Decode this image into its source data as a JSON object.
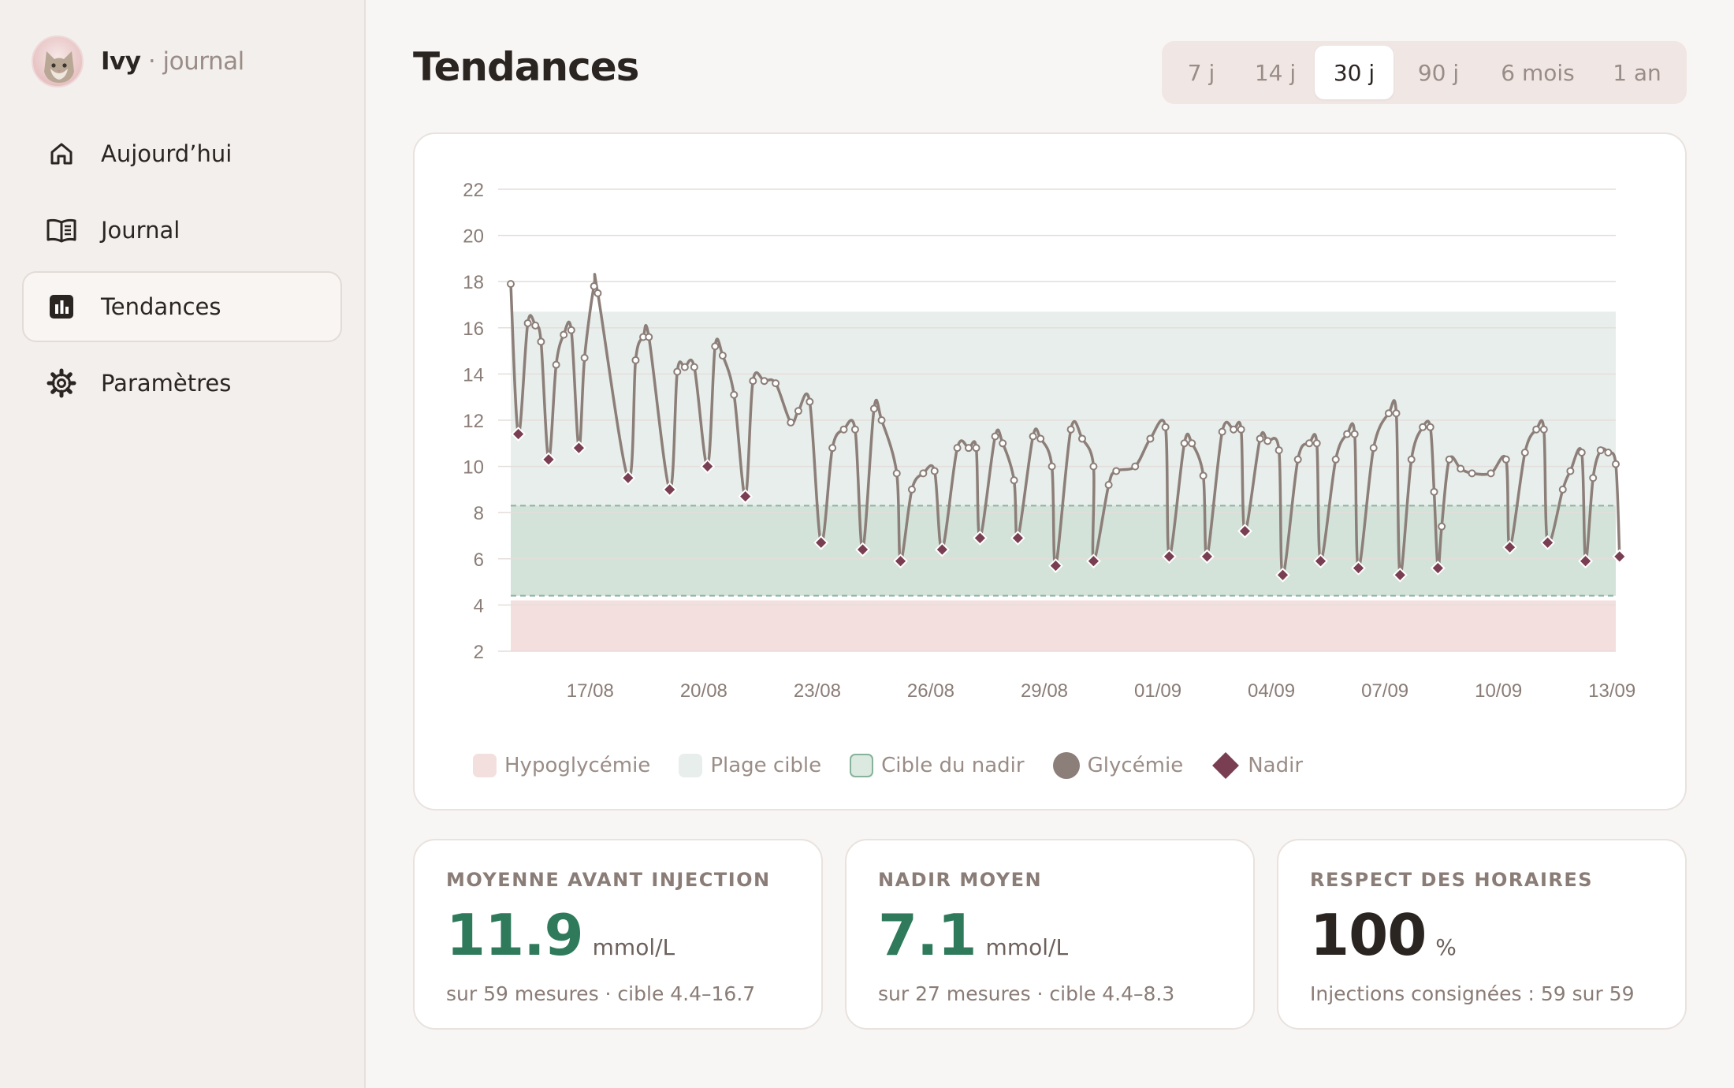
{
  "app": {
    "name": "Ivy",
    "separator": "·",
    "subtitle": "journal"
  },
  "nav": [
    {
      "label": "Aujourd’hui",
      "icon": "home-icon",
      "active": false
    },
    {
      "label": "Journal",
      "icon": "book-icon",
      "active": false
    },
    {
      "label": "Tendances",
      "icon": "bar-chart-icon",
      "active": true
    },
    {
      "label": "Paramètres",
      "icon": "gear-icon",
      "active": false
    }
  ],
  "page": {
    "title": "Tendances"
  },
  "range": {
    "options": [
      "7 j",
      "14 j",
      "30 j",
      "90 j",
      "6 mois",
      "1 an"
    ],
    "selected": "30 j"
  },
  "colors": {
    "accent_green": "#2e7a5b",
    "line": "#8c7e78",
    "nadir": "#7a3e52",
    "hypo_band": "#f4dfdf",
    "target_band": "#e8eeeb",
    "nadir_band": "#cfe0d6"
  },
  "chart_data": {
    "type": "line",
    "title": "",
    "xlabel": "",
    "ylabel": "",
    "ylim": [
      2,
      22
    ],
    "yticks": [
      2,
      4,
      6,
      8,
      10,
      12,
      14,
      16,
      18,
      20,
      22
    ],
    "xtick_labels": [
      "17/08",
      "20/08",
      "23/08",
      "26/08",
      "29/08",
      "01/09",
      "04/09",
      "07/09",
      "10/09",
      "13/09"
    ],
    "x_domain_days": [
      0,
      29.2
    ],
    "xtick_days": [
      2.1,
      5.1,
      8.1,
      11.1,
      14.1,
      17.1,
      20.1,
      23.1,
      26.1,
      29.1
    ],
    "bands": [
      {
        "name": "Hypoglycémie",
        "from": 2,
        "to": 4.2
      },
      {
        "name": "Plage cible",
        "from": 4.4,
        "to": 16.7
      },
      {
        "name": "Cible du nadir",
        "from": 4.4,
        "to": 8.3
      }
    ],
    "grid": true,
    "legend": [
      "Hypoglycémie",
      "Plage cible",
      "Cible du nadir",
      "Glycémie",
      "Nadir"
    ],
    "legend_position": "bottom-left",
    "series": [
      {
        "name": "Glycémie",
        "points": [
          [
            0,
            17.9
          ],
          [
            0.2,
            11.4
          ],
          [
            0.45,
            16.2
          ],
          [
            0.65,
            16.1
          ],
          [
            0.8,
            15.4
          ],
          [
            1.0,
            10.3
          ],
          [
            1.2,
            14.4
          ],
          [
            1.4,
            15.7
          ],
          [
            1.6,
            15.9
          ],
          [
            1.8,
            10.8
          ],
          [
            1.95,
            14.7
          ],
          [
            2.2,
            17.8
          ],
          [
            2.3,
            17.5
          ],
          [
            3.1,
            9.5
          ],
          [
            3.3,
            14.6
          ],
          [
            3.5,
            15.6
          ],
          [
            3.65,
            15.6
          ],
          [
            4.2,
            9.0
          ],
          [
            4.4,
            14.1
          ],
          [
            4.6,
            14.3
          ],
          [
            4.85,
            14.3
          ],
          [
            5.2,
            10.0
          ],
          [
            5.4,
            15.2
          ],
          [
            5.6,
            14.8
          ],
          [
            5.9,
            13.1
          ],
          [
            6.2,
            8.7
          ],
          [
            6.4,
            13.7
          ],
          [
            6.7,
            13.7
          ],
          [
            7.0,
            13.6
          ],
          [
            7.4,
            11.9
          ],
          [
            7.6,
            12.4
          ],
          [
            7.9,
            12.8
          ],
          [
            8.2,
            6.7
          ],
          [
            8.5,
            10.8
          ],
          [
            8.8,
            11.6
          ],
          [
            9.1,
            11.6
          ],
          [
            9.3,
            6.4
          ],
          [
            9.6,
            12.5
          ],
          [
            9.8,
            12.0
          ],
          [
            10.2,
            9.7
          ],
          [
            10.3,
            5.9
          ],
          [
            10.6,
            9.0
          ],
          [
            10.9,
            9.7
          ],
          [
            11.2,
            9.8
          ],
          [
            11.4,
            6.4
          ],
          [
            11.8,
            10.8
          ],
          [
            12.1,
            10.8
          ],
          [
            12.3,
            10.8
          ],
          [
            12.4,
            6.9
          ],
          [
            12.8,
            11.3
          ],
          [
            13.0,
            11.0
          ],
          [
            13.3,
            9.4
          ],
          [
            13.4,
            6.9
          ],
          [
            13.8,
            11.3
          ],
          [
            14.0,
            11.2
          ],
          [
            14.3,
            10.0
          ],
          [
            14.4,
            5.7
          ],
          [
            14.8,
            11.6
          ],
          [
            15.1,
            11.2
          ],
          [
            15.4,
            10.0
          ],
          [
            15.4,
            5.9
          ],
          [
            15.8,
            9.2
          ],
          [
            16.0,
            9.8
          ],
          [
            16.5,
            10.0
          ],
          [
            16.9,
            11.2
          ],
          [
            17.3,
            11.7
          ],
          [
            17.4,
            6.1
          ],
          [
            17.8,
            11.0
          ],
          [
            18.0,
            11.0
          ],
          [
            18.3,
            9.6
          ],
          [
            18.4,
            6.1
          ],
          [
            18.8,
            11.5
          ],
          [
            19.1,
            11.6
          ],
          [
            19.3,
            11.6
          ],
          [
            19.4,
            7.2
          ],
          [
            19.8,
            11.2
          ],
          [
            20.0,
            11.1
          ],
          [
            20.3,
            10.7
          ],
          [
            20.4,
            5.3
          ],
          [
            20.8,
            10.3
          ],
          [
            21.1,
            11.0
          ],
          [
            21.3,
            11.0
          ],
          [
            21.4,
            5.9
          ],
          [
            21.8,
            10.3
          ],
          [
            22.1,
            11.4
          ],
          [
            22.3,
            11.4
          ],
          [
            22.4,
            5.6
          ],
          [
            22.8,
            10.8
          ],
          [
            23.2,
            12.3
          ],
          [
            23.4,
            12.3
          ],
          [
            23.5,
            5.3
          ],
          [
            23.8,
            10.3
          ],
          [
            24.1,
            11.7
          ],
          [
            24.3,
            11.7
          ],
          [
            24.4,
            8.9
          ],
          [
            24.5,
            5.6
          ],
          [
            24.6,
            7.4
          ],
          [
            24.8,
            10.3
          ],
          [
            25.1,
            9.9
          ],
          [
            25.4,
            9.7
          ],
          [
            25.9,
            9.7
          ],
          [
            26.3,
            10.3
          ],
          [
            26.4,
            6.5
          ],
          [
            26.8,
            10.6
          ],
          [
            27.1,
            11.6
          ],
          [
            27.3,
            11.6
          ],
          [
            27.4,
            6.7
          ],
          [
            27.8,
            9.0
          ],
          [
            28.0,
            9.8
          ],
          [
            28.3,
            10.6
          ],
          [
            28.4,
            5.9
          ],
          [
            28.6,
            9.5
          ],
          [
            28.8,
            10.7
          ],
          [
            29.0,
            10.6
          ],
          [
            29.2,
            10.1
          ],
          [
            29.3,
            6.1
          ]
        ]
      },
      {
        "name": "Nadir",
        "points": [
          [
            0.2,
            11.4
          ],
          [
            1.0,
            10.3
          ],
          [
            1.8,
            10.8
          ],
          [
            3.1,
            9.5
          ],
          [
            4.2,
            9.0
          ],
          [
            5.2,
            10.0
          ],
          [
            6.2,
            8.7
          ],
          [
            8.2,
            6.7
          ],
          [
            9.3,
            6.4
          ],
          [
            10.3,
            5.9
          ],
          [
            11.4,
            6.4
          ],
          [
            12.4,
            6.9
          ],
          [
            13.4,
            6.9
          ],
          [
            14.4,
            5.7
          ],
          [
            15.4,
            5.9
          ],
          [
            17.4,
            6.1
          ],
          [
            18.4,
            6.1
          ],
          [
            19.4,
            7.2
          ],
          [
            20.4,
            5.3
          ],
          [
            21.4,
            5.9
          ],
          [
            22.4,
            5.6
          ],
          [
            23.5,
            5.3
          ],
          [
            24.5,
            5.6
          ],
          [
            26.4,
            6.5
          ],
          [
            27.4,
            6.7
          ],
          [
            28.4,
            5.9
          ],
          [
            29.3,
            6.1
          ]
        ]
      }
    ]
  },
  "stats": [
    {
      "label": "MOYENNE AVANT INJECTION",
      "value": "11.9",
      "unit": "mmol/L",
      "sub": "sur 59 mesures · cible 4.4–16.7",
      "color": "#2e7a5b"
    },
    {
      "label": "NADIR MOYEN",
      "value": "7.1",
      "unit": "mmol/L",
      "sub": "sur 27 mesures · cible 4.4–8.3",
      "color": "#2e7a5b"
    },
    {
      "label": "RESPECT DES HORAIRES",
      "value": "100",
      "unit": "%",
      "sub": "Injections consignées : 59 sur 59",
      "color": "#2b2522"
    }
  ]
}
